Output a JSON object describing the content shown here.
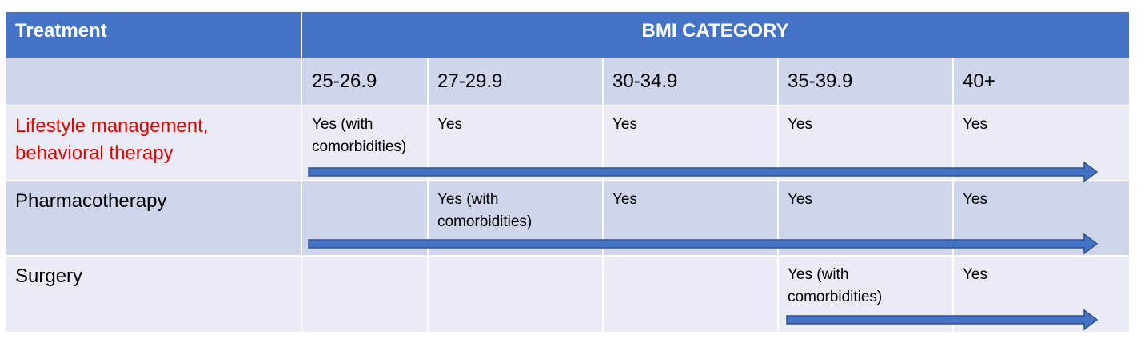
{
  "header": {
    "treatment": "Treatment",
    "bmi_category": "BMI CATEGORY"
  },
  "columns": [
    "25-26.9",
    "27-29.9",
    "30-34.9",
    "35-39.9",
    "40+"
  ],
  "rows": [
    {
      "treatment": "Lifestyle management,\nbehavioral therapy",
      "treatment_color": "#e00000",
      "cells": [
        "Yes (with\ncomorbidities)",
        "Yes",
        "Yes",
        "Yes",
        "Yes"
      ]
    },
    {
      "treatment": "Pharmacotherapy",
      "treatment_color": "#000000",
      "cells": [
        "",
        "Yes (with\ncomorbidities)",
        "Yes",
        "Yes",
        "Yes"
      ]
    },
    {
      "treatment": "Surgery",
      "treatment_color": "#000000",
      "cells": [
        "",
        "",
        "",
        "Yes (with\ncomorbidities)",
        "Yes"
      ]
    }
  ],
  "colors": {
    "header_bg": "#4472c4",
    "row_dark": "#cfd5ea",
    "row_light": "#e9ebf5",
    "arrow": "#4472c4",
    "arrow_border": "#2f528f"
  }
}
